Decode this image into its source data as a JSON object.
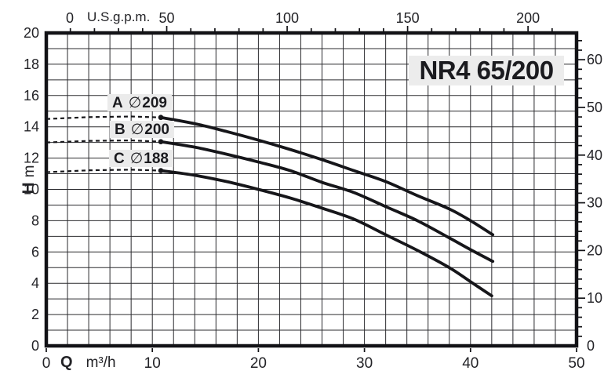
{
  "chart_data": {
    "type": "line",
    "title": "NR4 65/200",
    "axes": {
      "top": {
        "unit": "U.S.g.p.m.",
        "tick_labels": [
          "0",
          "50",
          "100",
          "150",
          "200"
        ],
        "tick_values_gpm": [
          0,
          50,
          100,
          150,
          200
        ],
        "minor_step_gpm": 10,
        "range_gpm": [
          0,
          220
        ]
      },
      "bottom": {
        "label": "Q",
        "unit": "m³/h",
        "ticks": [
          0,
          10,
          20,
          30,
          40,
          50
        ],
        "range": [
          0,
          50
        ]
      },
      "left": {
        "label": "H",
        "unit": "m",
        "ticks": [
          0,
          2,
          4,
          6,
          8,
          10,
          12,
          14,
          16,
          18,
          20
        ],
        "range": [
          0,
          20
        ]
      },
      "right": {
        "tick_labels": [
          0,
          10,
          20,
          30,
          40,
          50,
          60
        ],
        "minor_step": 2,
        "range": [
          0,
          65.6
        ]
      }
    },
    "grid": {
      "x_step": 2,
      "y_step": 1,
      "visible": true
    },
    "series": [
      {
        "name": "A",
        "diameter_symbol": "∅",
        "diameter": "209",
        "dashed_points": [
          [
            0,
            14.5
          ],
          [
            4,
            14.62
          ],
          [
            8,
            14.66
          ],
          [
            10.8,
            14.6
          ]
        ],
        "points": [
          [
            10.8,
            14.6
          ],
          [
            14,
            14.2
          ],
          [
            17,
            13.7
          ],
          [
            20,
            13.15
          ],
          [
            23,
            12.55
          ],
          [
            26,
            11.9
          ],
          [
            29,
            11.2
          ],
          [
            32,
            10.5
          ],
          [
            35,
            9.6
          ],
          [
            38,
            8.75
          ],
          [
            40,
            8.0
          ],
          [
            42.1,
            7.1
          ]
        ]
      },
      {
        "name": "B",
        "diameter_symbol": "∅",
        "diameter": "200",
        "dashed_points": [
          [
            0,
            13.0
          ],
          [
            4,
            13.1
          ],
          [
            8,
            13.13
          ],
          [
            10.8,
            13.05
          ]
        ],
        "points": [
          [
            10.8,
            13.05
          ],
          [
            14,
            12.7
          ],
          [
            17,
            12.25
          ],
          [
            20,
            11.75
          ],
          [
            23,
            11.2
          ],
          [
            26,
            10.45
          ],
          [
            29,
            9.8
          ],
          [
            32,
            8.9
          ],
          [
            35,
            8.0
          ],
          [
            38,
            6.9
          ],
          [
            40,
            6.15
          ],
          [
            42.1,
            5.4
          ]
        ]
      },
      {
        "name": "C",
        "diameter_symbol": "∅",
        "diameter": "188",
        "dashed_points": [
          [
            0,
            11.1
          ],
          [
            4,
            11.22
          ],
          [
            8,
            11.26
          ],
          [
            10.8,
            11.2
          ]
        ],
        "points": [
          [
            10.8,
            11.2
          ],
          [
            14,
            10.9
          ],
          [
            17,
            10.5
          ],
          [
            20,
            10.0
          ],
          [
            23,
            9.45
          ],
          [
            26,
            8.8
          ],
          [
            29,
            8.1
          ],
          [
            32,
            7.1
          ],
          [
            35,
            6.1
          ],
          [
            38,
            5.0
          ],
          [
            40,
            4.1
          ],
          [
            42,
            3.2
          ]
        ]
      }
    ],
    "colors": {
      "curve": "#16161a",
      "grid": "#2b2b2f",
      "frame": "#121216",
      "label_background": "#ebebeb",
      "title_background": "#ececec",
      "text": "#232327"
    }
  }
}
